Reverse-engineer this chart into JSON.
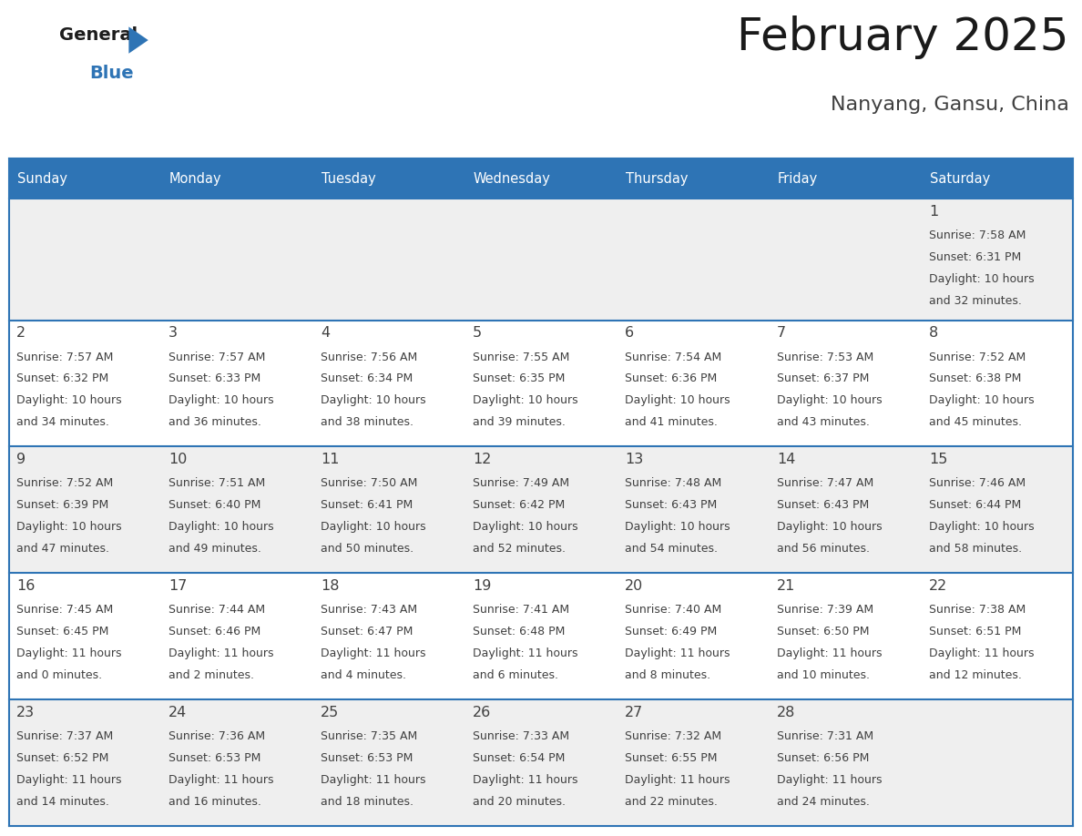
{
  "title": "February 2025",
  "subtitle": "Nanyang, Gansu, China",
  "header_bg": "#2E74B5",
  "header_text_color": "#FFFFFF",
  "row_bg_light": "#EFEFEF",
  "row_bg_white": "#FFFFFF",
  "info_text_color": "#404040",
  "border_color": "#2E74B5",
  "days_of_week": [
    "Sunday",
    "Monday",
    "Tuesday",
    "Wednesday",
    "Thursday",
    "Friday",
    "Saturday"
  ],
  "weeks": [
    [
      {
        "day": null
      },
      {
        "day": null
      },
      {
        "day": null
      },
      {
        "day": null
      },
      {
        "day": null
      },
      {
        "day": null
      },
      {
        "day": 1,
        "sunrise": "7:58 AM",
        "sunset": "6:31 PM",
        "daylight_h": "10 hours",
        "daylight_m": "and 32 minutes."
      }
    ],
    [
      {
        "day": 2,
        "sunrise": "7:57 AM",
        "sunset": "6:32 PM",
        "daylight_h": "10 hours",
        "daylight_m": "and 34 minutes."
      },
      {
        "day": 3,
        "sunrise": "7:57 AM",
        "sunset": "6:33 PM",
        "daylight_h": "10 hours",
        "daylight_m": "and 36 minutes."
      },
      {
        "day": 4,
        "sunrise": "7:56 AM",
        "sunset": "6:34 PM",
        "daylight_h": "10 hours",
        "daylight_m": "and 38 minutes."
      },
      {
        "day": 5,
        "sunrise": "7:55 AM",
        "sunset": "6:35 PM",
        "daylight_h": "10 hours",
        "daylight_m": "and 39 minutes."
      },
      {
        "day": 6,
        "sunrise": "7:54 AM",
        "sunset": "6:36 PM",
        "daylight_h": "10 hours",
        "daylight_m": "and 41 minutes."
      },
      {
        "day": 7,
        "sunrise": "7:53 AM",
        "sunset": "6:37 PM",
        "daylight_h": "10 hours",
        "daylight_m": "and 43 minutes."
      },
      {
        "day": 8,
        "sunrise": "7:52 AM",
        "sunset": "6:38 PM",
        "daylight_h": "10 hours",
        "daylight_m": "and 45 minutes."
      }
    ],
    [
      {
        "day": 9,
        "sunrise": "7:52 AM",
        "sunset": "6:39 PM",
        "daylight_h": "10 hours",
        "daylight_m": "and 47 minutes."
      },
      {
        "day": 10,
        "sunrise": "7:51 AM",
        "sunset": "6:40 PM",
        "daylight_h": "10 hours",
        "daylight_m": "and 49 minutes."
      },
      {
        "day": 11,
        "sunrise": "7:50 AM",
        "sunset": "6:41 PM",
        "daylight_h": "10 hours",
        "daylight_m": "and 50 minutes."
      },
      {
        "day": 12,
        "sunrise": "7:49 AM",
        "sunset": "6:42 PM",
        "daylight_h": "10 hours",
        "daylight_m": "and 52 minutes."
      },
      {
        "day": 13,
        "sunrise": "7:48 AM",
        "sunset": "6:43 PM",
        "daylight_h": "10 hours",
        "daylight_m": "and 54 minutes."
      },
      {
        "day": 14,
        "sunrise": "7:47 AM",
        "sunset": "6:43 PM",
        "daylight_h": "10 hours",
        "daylight_m": "and 56 minutes."
      },
      {
        "day": 15,
        "sunrise": "7:46 AM",
        "sunset": "6:44 PM",
        "daylight_h": "10 hours",
        "daylight_m": "and 58 minutes."
      }
    ],
    [
      {
        "day": 16,
        "sunrise": "7:45 AM",
        "sunset": "6:45 PM",
        "daylight_h": "11 hours",
        "daylight_m": "and 0 minutes."
      },
      {
        "day": 17,
        "sunrise": "7:44 AM",
        "sunset": "6:46 PM",
        "daylight_h": "11 hours",
        "daylight_m": "and 2 minutes."
      },
      {
        "day": 18,
        "sunrise": "7:43 AM",
        "sunset": "6:47 PM",
        "daylight_h": "11 hours",
        "daylight_m": "and 4 minutes."
      },
      {
        "day": 19,
        "sunrise": "7:41 AM",
        "sunset": "6:48 PM",
        "daylight_h": "11 hours",
        "daylight_m": "and 6 minutes."
      },
      {
        "day": 20,
        "sunrise": "7:40 AM",
        "sunset": "6:49 PM",
        "daylight_h": "11 hours",
        "daylight_m": "and 8 minutes."
      },
      {
        "day": 21,
        "sunrise": "7:39 AM",
        "sunset": "6:50 PM",
        "daylight_h": "11 hours",
        "daylight_m": "and 10 minutes."
      },
      {
        "day": 22,
        "sunrise": "7:38 AM",
        "sunset": "6:51 PM",
        "daylight_h": "11 hours",
        "daylight_m": "and 12 minutes."
      }
    ],
    [
      {
        "day": 23,
        "sunrise": "7:37 AM",
        "sunset": "6:52 PM",
        "daylight_h": "11 hours",
        "daylight_m": "and 14 minutes."
      },
      {
        "day": 24,
        "sunrise": "7:36 AM",
        "sunset": "6:53 PM",
        "daylight_h": "11 hours",
        "daylight_m": "and 16 minutes."
      },
      {
        "day": 25,
        "sunrise": "7:35 AM",
        "sunset": "6:53 PM",
        "daylight_h": "11 hours",
        "daylight_m": "and 18 minutes."
      },
      {
        "day": 26,
        "sunrise": "7:33 AM",
        "sunset": "6:54 PM",
        "daylight_h": "11 hours",
        "daylight_m": "and 20 minutes."
      },
      {
        "day": 27,
        "sunrise": "7:32 AM",
        "sunset": "6:55 PM",
        "daylight_h": "11 hours",
        "daylight_m": "and 22 minutes."
      },
      {
        "day": 28,
        "sunrise": "7:31 AM",
        "sunset": "6:56 PM",
        "daylight_h": "11 hours",
        "daylight_m": "and 24 minutes."
      },
      {
        "day": null
      }
    ]
  ]
}
